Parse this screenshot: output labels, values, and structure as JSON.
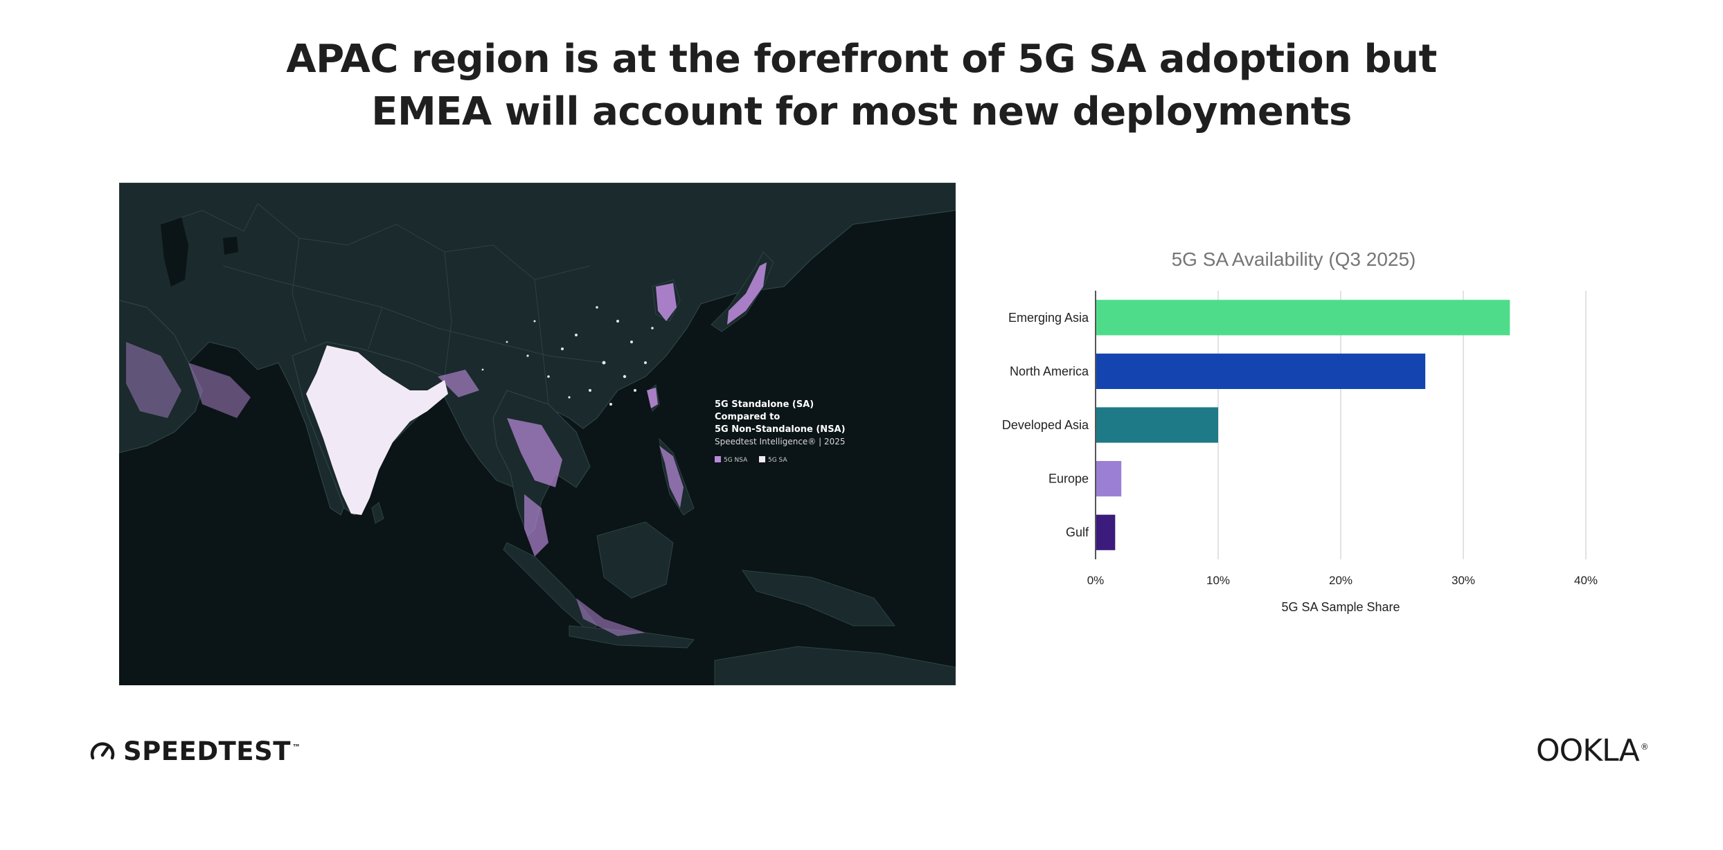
{
  "headline": {
    "line1": "APAC region is at the forefront of 5G SA adoption but",
    "line2": "EMEA will account for most new deployments"
  },
  "map": {
    "legend_title_line1": "5G Standalone (SA)",
    "legend_title_line2": "Compared to",
    "legend_title_line3": "5G Non-Standalone (NSA)",
    "legend_source": "Speedtest Intelligence® | 2025",
    "legend_nsa_label": "5G NSA",
    "legend_sa_label": "5G SA",
    "nsa_color": "#b98ad9",
    "sa_color": "#f1eaf6",
    "ocean_color": "#0b1416",
    "land_color": "#1b2a2c"
  },
  "chart_data": {
    "type": "bar",
    "orientation": "horizontal",
    "title": "5G SA Availability (Q3 2025)",
    "xlabel": "5G SA Sample Share",
    "ylabel": "",
    "categories": [
      "Emerging Asia",
      "North America",
      "Developed Asia",
      "Europe",
      "Gulf"
    ],
    "values": [
      33.8,
      26.9,
      10.0,
      2.1,
      1.6
    ],
    "colors": [
      "#4fdc8a",
      "#1444b0",
      "#1d7a86",
      "#9b7fd4",
      "#3b1b7c"
    ],
    "xlim": [
      0,
      40
    ],
    "xticks": [
      "0%",
      "10%",
      "20%",
      "30%",
      "40%"
    ],
    "grid": true,
    "legend": "none"
  },
  "footer": {
    "left_brand": "SPEEDTEST",
    "left_brand_mark": "™",
    "right_brand": "OOKLA",
    "right_brand_mark": "®"
  }
}
